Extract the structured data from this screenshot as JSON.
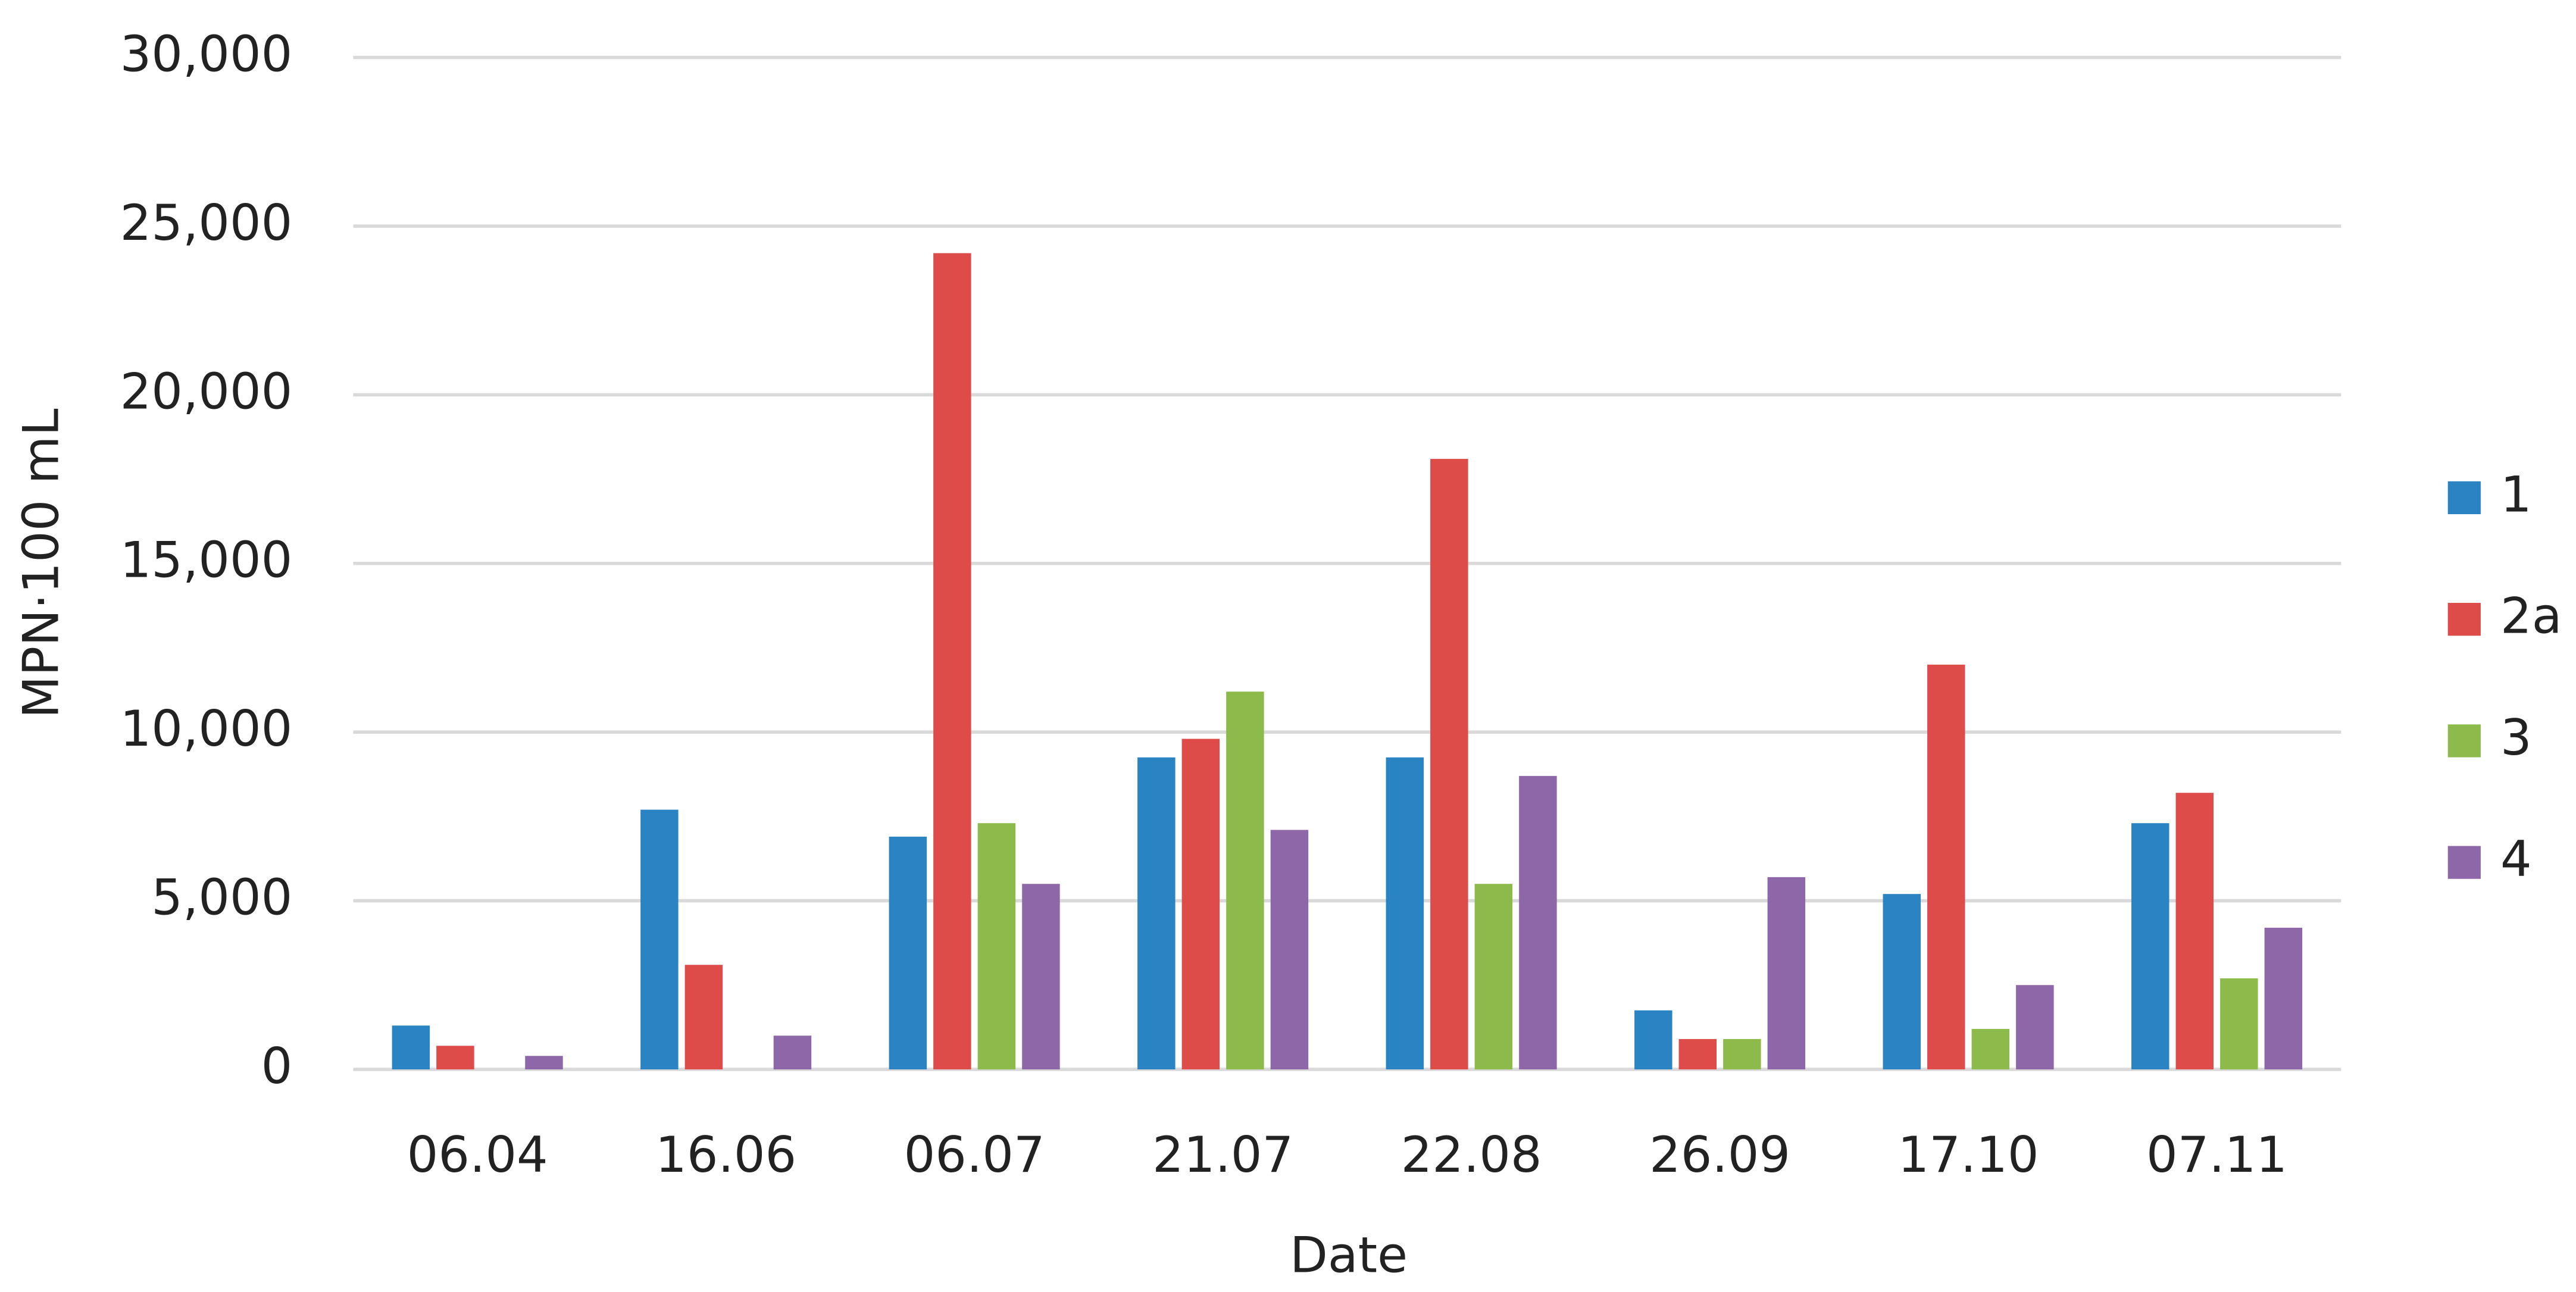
{
  "chart_data": {
    "type": "bar",
    "x_label": "Date",
    "y_label": "MPN·100 mL",
    "categories": [
      "06.04",
      "16.06",
      "06.07",
      "21.07",
      "22.08",
      "26.09",
      "17.10",
      "07.11"
    ],
    "series": [
      {
        "name": "1",
        "color": "#2a83c2",
        "values": [
          1300,
          7700,
          6900,
          9250,
          9250,
          1750,
          5200,
          7300
        ]
      },
      {
        "name": "2a",
        "color": "#de4c4a",
        "values": [
          700,
          3100,
          24200,
          9800,
          18100,
          900,
          12000,
          8200
        ]
      },
      {
        "name": "3",
        "color": "#8cbb4c",
        "values": [
          0,
          0,
          7300,
          11200,
          5500,
          900,
          1200,
          2700
        ]
      },
      {
        "name": "4",
        "color": "#8d67a8",
        "values": [
          400,
          1000,
          5500,
          7100,
          8700,
          5700,
          2500,
          4200
        ]
      }
    ],
    "ylim": [
      0,
      30000
    ],
    "yticks": [
      0,
      {
        "value": 5000,
        "label": "5,000"
      },
      {
        "value": 10000,
        "label": "10,000"
      },
      {
        "value": 15000,
        "label": "15,000"
      },
      {
        "value": 20000,
        "label": "20,000"
      },
      {
        "value": 25000,
        "label": "25,000"
      },
      {
        "value": 30000,
        "label": "30,000"
      }
    ],
    "grid": true,
    "legend": "right"
  }
}
